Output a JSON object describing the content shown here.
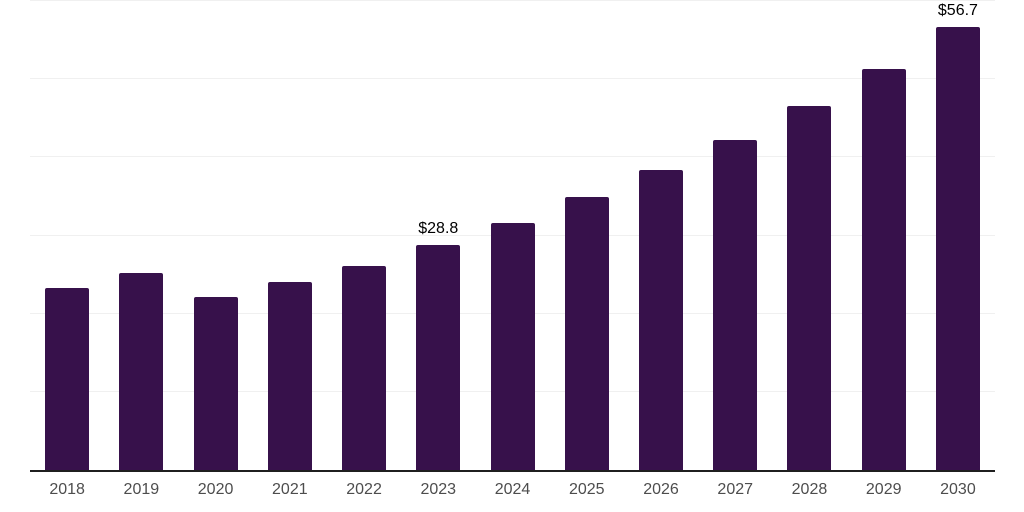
{
  "chart_data": {
    "type": "bar",
    "title": "",
    "xlabel": "",
    "ylabel": "",
    "categories": [
      "2018",
      "2019",
      "2020",
      "2021",
      "2022",
      "2023",
      "2024",
      "2025",
      "2026",
      "2027",
      "2028",
      "2029",
      "2030"
    ],
    "values": [
      23.3,
      25.2,
      22.1,
      24.0,
      26.1,
      28.8,
      31.6,
      34.9,
      38.4,
      42.2,
      46.6,
      51.3,
      56.7
    ],
    "data_labels": [
      "",
      "",
      "",
      "",
      "",
      "$28.8",
      "",
      "",
      "",
      "",
      "",
      "",
      "$56.7"
    ],
    "ylim": [
      0,
      60
    ],
    "gridline_values": [
      10,
      20,
      30,
      40,
      50,
      60
    ],
    "grid": "horizontal-only",
    "y_tick_labels_shown": false,
    "legend": "none",
    "colors": {
      "bar": "#37114b",
      "gridline": "#f0f0f0",
      "axis_line": "#1f1f1f",
      "tick_label": "#4d4d4d",
      "data_label": "#000000",
      "background": "#ffffff"
    }
  }
}
